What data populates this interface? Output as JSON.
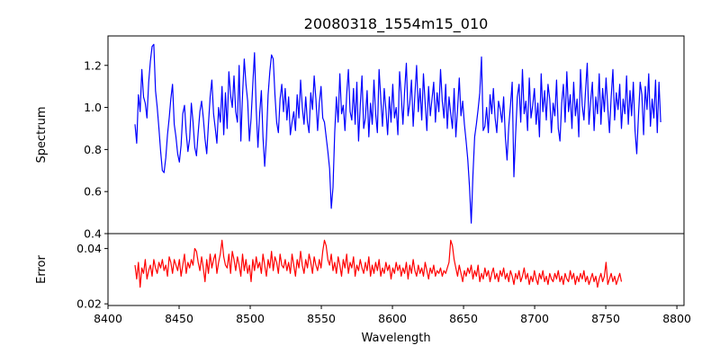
{
  "title": "20080318_1554m15_010",
  "chart_data": [
    {
      "type": "line",
      "panel": "top",
      "title": "20080318_1554m15_010",
      "xlabel": "",
      "ylabel": "Spectrum",
      "xlim": [
        8400,
        8805
      ],
      "ylim": [
        0.4,
        1.34
      ],
      "yticks": [
        0.4,
        0.6,
        0.8,
        1.0,
        1.2
      ],
      "ytick_labels": [
        "0.4",
        "0.6",
        "0.8",
        "1.0",
        "1.2"
      ],
      "color": "#0000ff",
      "x_start": 8419,
      "x_step": 1.2,
      "y": [
        0.92,
        0.83,
        1.06,
        0.98,
        1.18,
        1.05,
        1.02,
        0.95,
        1.12,
        1.22,
        1.29,
        1.3,
        1.08,
        1.0,
        0.9,
        0.79,
        0.7,
        0.69,
        0.76,
        0.87,
        0.95,
        1.04,
        1.11,
        0.92,
        0.86,
        0.78,
        0.74,
        0.82,
        0.97,
        1.01,
        0.88,
        0.79,
        0.85,
        1.02,
        0.93,
        0.81,
        0.77,
        0.88,
        0.98,
        1.03,
        0.95,
        0.85,
        0.78,
        0.92,
        1.05,
        1.13,
        0.97,
        0.9,
        0.83,
        1.0,
        0.93,
        1.1,
        0.87,
        1.07,
        0.9,
        1.17,
        1.06,
        1.0,
        1.15,
        0.98,
        0.93,
        1.2,
        0.84,
        1.06,
        1.23,
        1.11,
        1.03,
        0.84,
        0.95,
        1.11,
        1.26,
        0.99,
        0.81,
        0.97,
        1.08,
        0.86,
        0.72,
        0.85,
        1.06,
        1.17,
        1.25,
        1.23,
        1.06,
        0.93,
        0.88,
        1.04,
        1.11,
        0.98,
        1.09,
        0.94,
        1.05,
        0.87,
        0.93,
        0.98,
        0.89,
        1.06,
        0.95,
        1.13,
        1.0,
        0.92,
        1.05,
        0.93,
        0.88,
        1.07,
        0.99,
        1.15,
        1.04,
        0.89,
        1.02,
        1.1,
        0.95,
        0.93,
        0.86,
        0.79,
        0.71,
        0.52,
        0.62,
        0.88,
        1.05,
        0.93,
        1.16,
        0.97,
        1.01,
        0.89,
        1.06,
        1.18,
        0.98,
        0.94,
        1.09,
        0.92,
        1.12,
        0.84,
        1.01,
        1.15,
        0.9,
        0.95,
        1.08,
        0.86,
        1.02,
        0.92,
        1.13,
        0.97,
        0.88,
        1.18,
        1.04,
        0.91,
        1.09,
        0.99,
        0.87,
        1.05,
        0.93,
        1.11,
        0.95,
        1.0,
        0.87,
        1.17,
        1.06,
        0.92,
        1.08,
        1.21,
        0.96,
        1.02,
        1.13,
        0.91,
        1.06,
        1.2,
        0.98,
        1.09,
        0.94,
        1.16,
        1.02,
        0.89,
        1.1,
        0.96,
        1.04,
        1.12,
        0.93,
        1.07,
        0.98,
        1.18,
        1.03,
        0.95,
        1.11,
        0.9,
        1.05,
        0.97,
        0.9,
        1.09,
        0.86,
        0.99,
        1.14,
        0.96,
        1.03,
        0.92,
        0.84,
        0.75,
        0.62,
        0.45,
        0.68,
        0.86,
        0.92,
        0.99,
        1.07,
        1.24,
        0.89,
        0.91,
        1.0,
        0.88,
        1.06,
        0.97,
        1.09,
        0.95,
        0.88,
        1.03,
        0.99,
        0.93,
        1.05,
        0.86,
        0.75,
        0.91,
        1.01,
        1.12,
        0.67,
        0.87,
        1.05,
        1.11,
        0.93,
        1.18,
        0.97,
        1.03,
        0.89,
        1.14,
        0.95,
        1.01,
        1.09,
        0.92,
        1.02,
        0.86,
        1.16,
        0.98,
        1.08,
        0.94,
        1.11,
        1.04,
        0.88,
        1.02,
        0.96,
        1.13,
        0.9,
        0.84,
        1.02,
        1.11,
        0.93,
        1.17,
        0.98,
        1.06,
        0.9,
        1.12,
        0.96,
        1.04,
        0.86,
        1.18,
        1.01,
        0.94,
        1.08,
        1.21,
        0.92,
        1.03,
        1.12,
        0.89,
        1.05,
        0.97,
        1.16,
        0.92,
        1.09,
        0.98,
        1.14,
        1.0,
        0.88,
        1.05,
        1.18,
        0.94,
        1.07,
        0.99,
        1.11,
        0.9,
        1.04,
        0.97,
        1.15,
        0.92,
        1.08,
        0.96,
        1.12,
        0.89,
        0.78,
        0.96,
        1.12,
        1.06,
        0.87,
        1.1,
        0.99,
        1.16,
        0.91,
        1.04,
        0.95,
        1.13,
        0.88,
        1.12,
        0.93
      ]
    },
    {
      "type": "line",
      "panel": "bottom",
      "xlabel": "Wavelength",
      "ylabel": "Error",
      "xlim": [
        8400,
        8805
      ],
      "ylim": [
        0.0194,
        0.0454
      ],
      "yticks": [
        0.02,
        0.04
      ],
      "ytick_labels": [
        "0.02",
        "0.04"
      ],
      "xticks": [
        8400,
        8450,
        8500,
        8550,
        8600,
        8650,
        8700,
        8750,
        8800
      ],
      "xtick_labels": [
        "8400",
        "8450",
        "8500",
        "8550",
        "8600",
        "8650",
        "8700",
        "8750",
        "8800"
      ],
      "color": "#ff0000",
      "x_start": 8419,
      "x_step": 1.2,
      "y": [
        0.034,
        0.029,
        0.035,
        0.026,
        0.033,
        0.031,
        0.036,
        0.029,
        0.032,
        0.034,
        0.03,
        0.036,
        0.033,
        0.031,
        0.035,
        0.033,
        0.036,
        0.032,
        0.034,
        0.03,
        0.037,
        0.035,
        0.031,
        0.036,
        0.034,
        0.032,
        0.036,
        0.03,
        0.034,
        0.038,
        0.031,
        0.035,
        0.033,
        0.036,
        0.034,
        0.04,
        0.039,
        0.035,
        0.032,
        0.037,
        0.033,
        0.028,
        0.036,
        0.031,
        0.038,
        0.033,
        0.036,
        0.038,
        0.031,
        0.035,
        0.038,
        0.043,
        0.037,
        0.034,
        0.033,
        0.038,
        0.031,
        0.039,
        0.036,
        0.032,
        0.037,
        0.034,
        0.03,
        0.038,
        0.032,
        0.036,
        0.031,
        0.034,
        0.028,
        0.036,
        0.032,
        0.037,
        0.033,
        0.035,
        0.031,
        0.038,
        0.034,
        0.03,
        0.036,
        0.033,
        0.039,
        0.032,
        0.037,
        0.035,
        0.031,
        0.038,
        0.034,
        0.033,
        0.036,
        0.032,
        0.035,
        0.031,
        0.038,
        0.034,
        0.03,
        0.036,
        0.033,
        0.039,
        0.034,
        0.031,
        0.036,
        0.033,
        0.038,
        0.035,
        0.031,
        0.037,
        0.034,
        0.032,
        0.036,
        0.033,
        0.039,
        0.043,
        0.041,
        0.036,
        0.034,
        0.038,
        0.032,
        0.035,
        0.031,
        0.037,
        0.034,
        0.03,
        0.036,
        0.033,
        0.038,
        0.031,
        0.035,
        0.033,
        0.037,
        0.03,
        0.034,
        0.032,
        0.036,
        0.033,
        0.031,
        0.035,
        0.032,
        0.037,
        0.03,
        0.034,
        0.031,
        0.035,
        0.032,
        0.036,
        0.03,
        0.033,
        0.031,
        0.035,
        0.032,
        0.034,
        0.029,
        0.033,
        0.031,
        0.035,
        0.032,
        0.034,
        0.03,
        0.033,
        0.031,
        0.035,
        0.029,
        0.034,
        0.031,
        0.036,
        0.032,
        0.03,
        0.034,
        0.031,
        0.033,
        0.03,
        0.035,
        0.032,
        0.029,
        0.033,
        0.031,
        0.034,
        0.03,
        0.032,
        0.031,
        0.033,
        0.03,
        0.032,
        0.031,
        0.033,
        0.035,
        0.043,
        0.041,
        0.036,
        0.033,
        0.03,
        0.034,
        0.031,
        0.028,
        0.032,
        0.03,
        0.033,
        0.031,
        0.034,
        0.029,
        0.032,
        0.03,
        0.034,
        0.028,
        0.031,
        0.029,
        0.033,
        0.03,
        0.032,
        0.028,
        0.031,
        0.033,
        0.029,
        0.031,
        0.028,
        0.032,
        0.03,
        0.033,
        0.029,
        0.031,
        0.028,
        0.032,
        0.03,
        0.027,
        0.031,
        0.029,
        0.032,
        0.028,
        0.03,
        0.033,
        0.029,
        0.031,
        0.027,
        0.03,
        0.028,
        0.032,
        0.029,
        0.027,
        0.031,
        0.029,
        0.032,
        0.028,
        0.03,
        0.027,
        0.031,
        0.029,
        0.028,
        0.031,
        0.029,
        0.032,
        0.028,
        0.03,
        0.027,
        0.031,
        0.029,
        0.028,
        0.032,
        0.029,
        0.031,
        0.027,
        0.03,
        0.028,
        0.031,
        0.029,
        0.032,
        0.028,
        0.03,
        0.027,
        0.029,
        0.031,
        0.028,
        0.03,
        0.026,
        0.029,
        0.031,
        0.028,
        0.03,
        0.035,
        0.027,
        0.029,
        0.031,
        0.028,
        0.03,
        0.027,
        0.029,
        0.031,
        0.028
      ]
    }
  ]
}
